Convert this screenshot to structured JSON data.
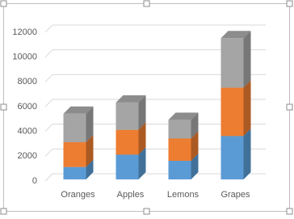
{
  "chart_data": {
    "type": "bar3d-stacked",
    "categories": [
      "Oranges",
      "Apples",
      "Lemons",
      "Grapes"
    ],
    "series": [
      {
        "color": "#5b9bd5",
        "values": [
          1000,
          2000,
          1500,
          3500
        ]
      },
      {
        "color": "#ed7d31",
        "values": [
          2000,
          2000,
          1800,
          3900
        ]
      },
      {
        "color": "#a5a5a5",
        "values": [
          2300,
          2200,
          1500,
          4000
        ]
      }
    ],
    "ylim": [
      0,
      12000
    ],
    "yticks": [
      0,
      2000,
      4000,
      6000,
      8000,
      10000,
      12000
    ],
    "grid": true
  }
}
